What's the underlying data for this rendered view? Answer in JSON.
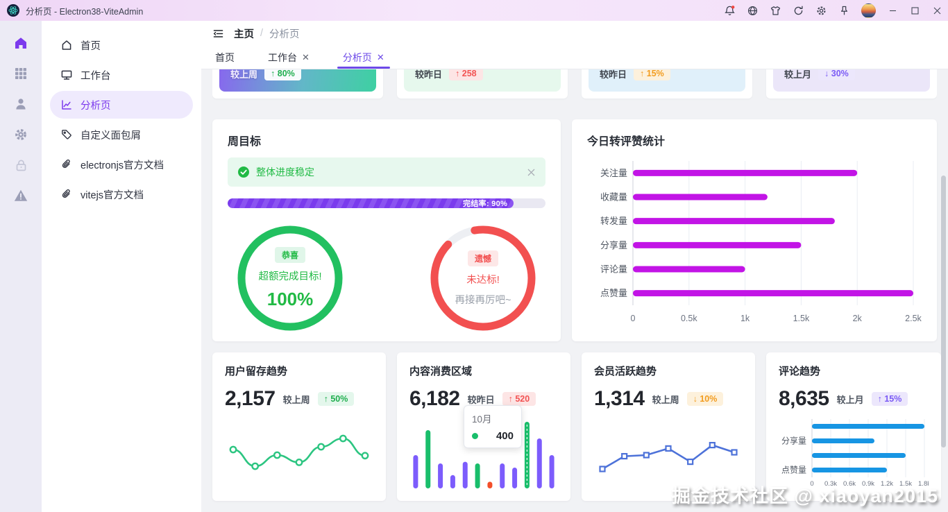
{
  "titlebar": {
    "app_title": "分析页 - Electron38-ViteAdmin",
    "icons": [
      "electron-logo",
      "notification-bell",
      "language-globe",
      "theme-shirt",
      "refresh",
      "settings-gear",
      "pin",
      "avatar",
      "minimize",
      "maximize",
      "close"
    ]
  },
  "rail": {
    "items": [
      "home",
      "apps-grid",
      "user",
      "settings-gear",
      "lock",
      "warning-triangle"
    ]
  },
  "sidebar": {
    "items": [
      {
        "icon": "home-outline",
        "label": "首页"
      },
      {
        "icon": "monitor",
        "label": "工作台"
      },
      {
        "icon": "chart-line",
        "label": "分析页",
        "active": true
      },
      {
        "icon": "tag",
        "label": "自定义面包屑"
      },
      {
        "icon": "paperclip",
        "label": "electronjs官方文档"
      },
      {
        "icon": "paperclip",
        "label": "vitejs官方文档"
      }
    ]
  },
  "header": {
    "breadcrumb_root": "主页",
    "breadcrumb_sep": "/",
    "breadcrumb_current": "分析页"
  },
  "tabs": [
    {
      "label": "首页",
      "closable": false,
      "active": false
    },
    {
      "label": "工作台",
      "closable": true,
      "active": false
    },
    {
      "label": "分析页",
      "closable": true,
      "active": true
    }
  ],
  "stat_cards": [
    {
      "label": "较上周",
      "badge": "↑ 80%"
    },
    {
      "label": "较昨日",
      "badge": "↑ 258"
    },
    {
      "label": "较昨日",
      "badge": "↑ 15%"
    },
    {
      "label": "较上月",
      "badge": "↓ 30%"
    }
  ],
  "week_goal": {
    "title": "周目标",
    "alert_text": "整体进度稳定",
    "progress": {
      "label": "完结率: 90%",
      "percent": 90
    },
    "gauges": [
      {
        "tag": "恭喜",
        "line1": "超额完成目标!",
        "line2": "100%",
        "percent": 100,
        "color": "#22c060"
      },
      {
        "tag": "遗憾",
        "line1": "未达标!",
        "line2": "再接再厉吧~",
        "percent": 90,
        "color": "#f25050"
      }
    ]
  },
  "today_stats": {
    "title": "今日转评赞统计",
    "chart_data": {
      "type": "bar",
      "orientation": "horizontal",
      "categories": [
        "关注量",
        "收藏量",
        "转发量",
        "分享量",
        "评论量",
        "点赞量"
      ],
      "values": [
        2000,
        1200,
        1800,
        1500,
        1000,
        2500
      ],
      "xlim": [
        0,
        2500
      ],
      "ticks": [
        "0",
        "0.5k",
        "1k",
        "1.5k",
        "2k",
        "2.5k"
      ],
      "bar_color": "#c214e6",
      "grid": true
    }
  },
  "mini_cards": [
    {
      "title": "用户留存趋势",
      "value": "2,157",
      "compare_label": "较上周",
      "badge": "↑ 50%",
      "chart_data": {
        "type": "line",
        "smooth": true,
        "marker": "circle",
        "color": "#2cc581",
        "y": [
          55,
          25,
          45,
          32,
          60,
          75,
          44
        ],
        "ylim": [
          0,
          100
        ]
      }
    },
    {
      "title": "内容消费区域",
      "value": "6,182",
      "compare_label": "较昨日",
      "badge": "↑ 520",
      "chart_data": {
        "type": "bar",
        "orientation": "vertical",
        "values": [
          200,
          350,
          150,
          80,
          160,
          150,
          40,
          150,
          125,
          400,
          300,
          200
        ],
        "colors": [
          "purple",
          "green",
          "purple",
          "purple",
          "purple",
          "green",
          "red",
          "purple",
          "purple",
          "green-active",
          "purple",
          "purple"
        ],
        "max": 400,
        "palette": {
          "purple": "#7c5cfc",
          "green": "#19be6b",
          "red": "#f34f2a",
          "green-active": "#19be6b"
        }
      },
      "tooltip": {
        "title": "10月",
        "value": "400",
        "dot_color": "#19be6b"
      }
    },
    {
      "title": "会员活跃趋势",
      "value": "1,314",
      "compare_label": "较上周",
      "badge": "↓ 10%",
      "chart_data": {
        "type": "line",
        "smooth": false,
        "marker": "square",
        "color": "#4d72d9",
        "y": [
          20,
          43,
          45,
          57,
          33,
          63,
          50
        ],
        "ylim": [
          0,
          100
        ]
      }
    },
    {
      "title": "评论趋势",
      "value": "8,635",
      "compare_label": "较上月",
      "badge": "↑ 15%",
      "chart_data": {
        "type": "bar",
        "orientation": "horizontal",
        "categories": [
          "",
          "分享量",
          "",
          "点赞量"
        ],
        "values": [
          1800,
          1000,
          1500,
          1200
        ],
        "xlim": [
          0,
          1800
        ],
        "ticks": [
          "0",
          "0.3k",
          "0.6k",
          "0.9k",
          "1.2k",
          "1.5k",
          "1.8k"
        ],
        "bar_color": "#1795e3",
        "grid": true
      }
    }
  ],
  "watermark": "掘金技术社区 @ xiaoyan2015"
}
